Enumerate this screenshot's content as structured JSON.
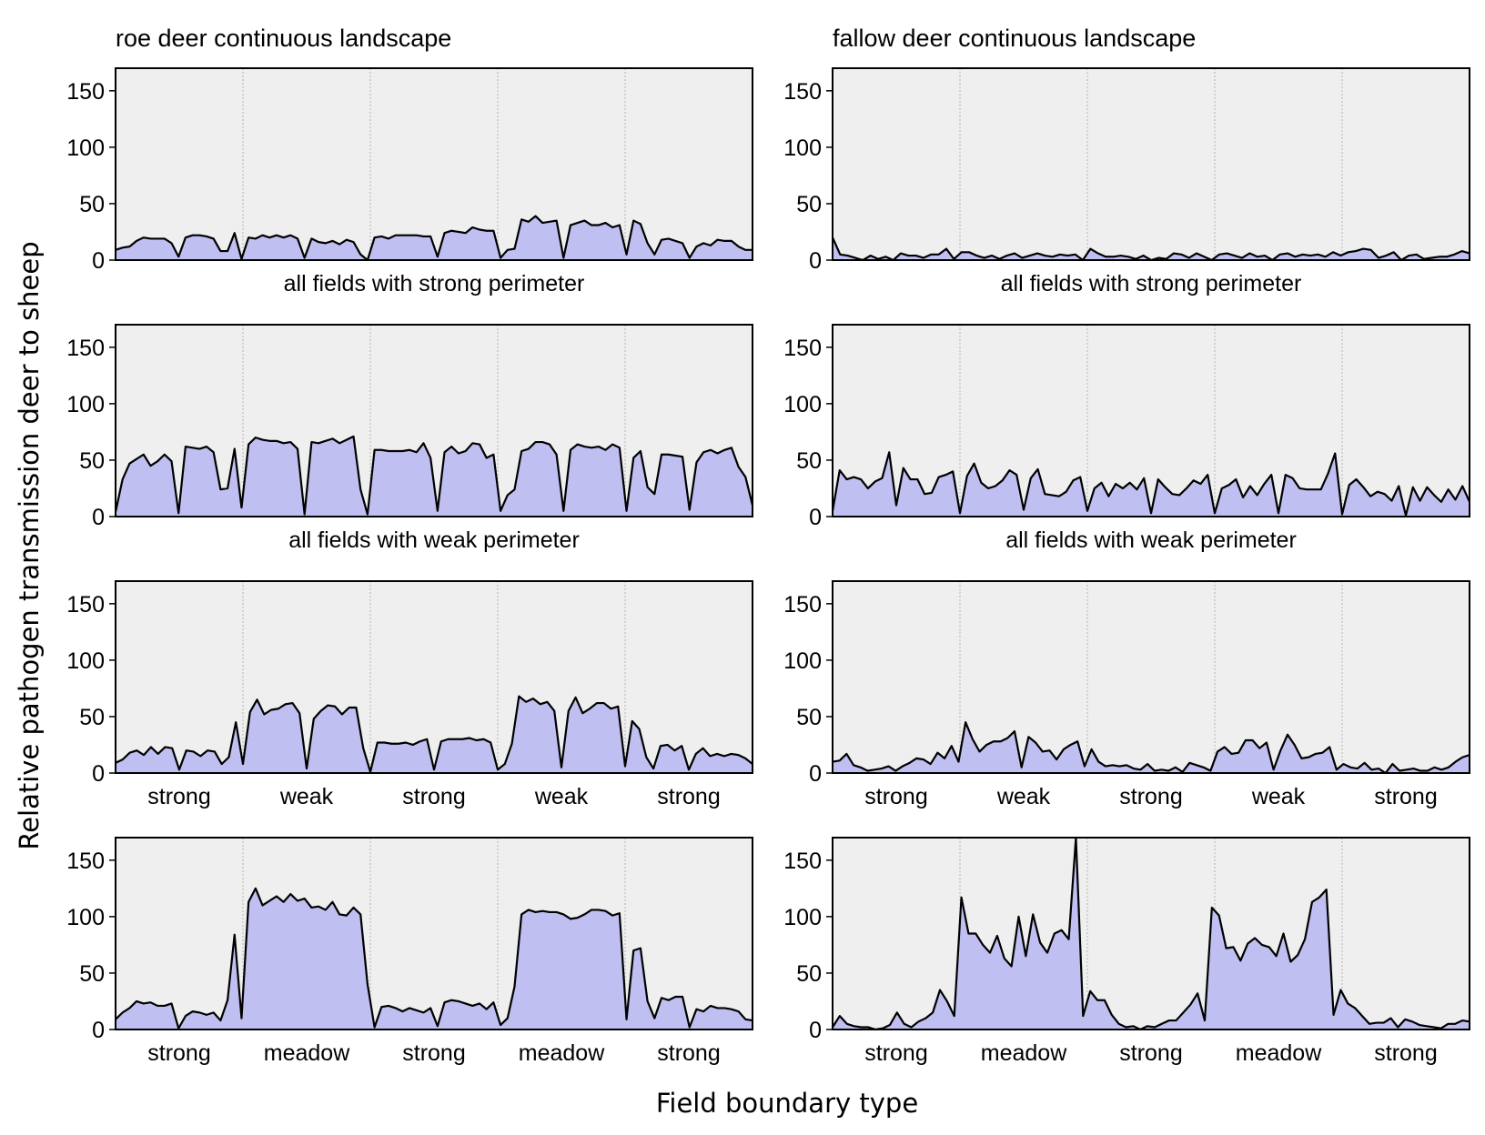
{
  "chart_data": {
    "type": "area",
    "ylabel": "Relative pathogen transmission deer to sheep",
    "xlabel": "Field boundary type",
    "ylim": [
      0,
      170
    ],
    "yticks": [
      0,
      50,
      100,
      150
    ],
    "columns": [
      "roe deer continuous landscape",
      "fallow deer continuous landscape"
    ],
    "panels": [
      {
        "col": 0,
        "row": 0,
        "title": "roe deer continuous landscape",
        "caption": "all fields with strong perimeter",
        "categories": [],
        "values": [
          9,
          11,
          12,
          17,
          20,
          19,
          19,
          19,
          15,
          3,
          20,
          22,
          22,
          21,
          19,
          8,
          8,
          24,
          1,
          20,
          19,
          22,
          20,
          22,
          20,
          22,
          19,
          2,
          19,
          16,
          15,
          17,
          14,
          18,
          16,
          5,
          0,
          20,
          21,
          19,
          22,
          22,
          22,
          22,
          21,
          21,
          3,
          24,
          26,
          25,
          24,
          29,
          27,
          26,
          26,
          2,
          9,
          10,
          36,
          34,
          39,
          33,
          34,
          35,
          2,
          31,
          33,
          35,
          31,
          31,
          33,
          29,
          31,
          5,
          35,
          32,
          15,
          5,
          18,
          19,
          17,
          15,
          2,
          12,
          15,
          13,
          18,
          17,
          17,
          12,
          9,
          9
        ]
      },
      {
        "col": 1,
        "row": 0,
        "title": "fallow deer continuous landscape",
        "caption": "all fields with strong perimeter",
        "categories": [],
        "values": [
          20,
          5,
          4,
          2,
          0,
          4,
          1,
          3,
          0,
          6,
          4,
          4,
          2,
          5,
          5,
          10,
          1,
          7,
          7,
          4,
          2,
          4,
          1,
          4,
          6,
          2,
          4,
          6,
          4,
          3,
          5,
          4,
          5,
          0,
          10,
          6,
          3,
          3,
          4,
          3,
          1,
          4,
          0,
          2,
          1,
          6,
          5,
          2,
          6,
          3,
          0,
          5,
          6,
          4,
          2,
          6,
          3,
          4,
          0,
          5,
          6,
          3,
          5,
          4,
          5,
          3,
          7,
          4,
          7,
          8,
          10,
          9,
          2,
          4,
          7,
          0,
          4,
          5,
          1,
          2,
          3,
          3,
          5,
          8,
          6
        ]
      },
      {
        "col": 0,
        "row": 1,
        "title": "",
        "caption": "all fields with weak perimeter",
        "categories": [],
        "values": [
          4,
          33,
          47,
          51,
          55,
          45,
          49,
          55,
          49,
          3,
          62,
          61,
          60,
          62,
          57,
          24,
          25,
          60,
          8,
          64,
          70,
          68,
          67,
          67,
          65,
          66,
          60,
          2,
          66,
          65,
          67,
          69,
          65,
          68,
          71,
          24,
          2,
          59,
          59,
          58,
          58,
          58,
          59,
          57,
          65,
          52,
          5,
          57,
          62,
          56,
          58,
          65,
          64,
          52,
          55,
          5,
          19,
          24,
          58,
          60,
          66,
          66,
          64,
          55,
          5,
          59,
          64,
          62,
          61,
          62,
          59,
          64,
          61,
          5,
          52,
          58,
          26,
          20,
          55,
          55,
          54,
          53,
          6,
          48,
          57,
          59,
          56,
          59,
          61,
          44,
          35,
          10
        ]
      },
      {
        "col": 1,
        "row": 1,
        "title": "",
        "caption": "all fields with weak perimeter",
        "categories": [],
        "values": [
          5,
          41,
          33,
          35,
          33,
          25,
          31,
          34,
          57,
          10,
          43,
          33,
          33,
          20,
          21,
          35,
          37,
          40,
          3,
          36,
          47,
          30,
          25,
          27,
          32,
          41,
          37,
          6,
          34,
          42,
          20,
          19,
          18,
          22,
          32,
          35,
          5,
          25,
          30,
          18,
          29,
          25,
          30,
          24,
          34,
          3,
          33,
          26,
          20,
          19,
          25,
          32,
          29,
          37,
          3,
          25,
          28,
          33,
          17,
          27,
          19,
          29,
          37,
          3,
          37,
          34,
          25,
          24,
          24,
          24,
          38,
          56,
          2,
          28,
          33,
          26,
          18,
          22,
          20,
          14,
          27,
          1,
          26,
          14,
          26,
          19,
          13,
          24,
          15,
          27,
          13
        ]
      },
      {
        "col": 0,
        "row": 2,
        "title": "",
        "caption": "",
        "categories": [
          "strong",
          "weak",
          "strong",
          "weak",
          "strong"
        ],
        "values": [
          9,
          12,
          18,
          20,
          16,
          23,
          17,
          23,
          22,
          3,
          20,
          19,
          15,
          20,
          19,
          8,
          14,
          45,
          8,
          54,
          65,
          52,
          56,
          57,
          61,
          62,
          53,
          4,
          48,
          55,
          60,
          59,
          52,
          58,
          58,
          22,
          1,
          27,
          27,
          26,
          26,
          27,
          25,
          28,
          30,
          3,
          28,
          30,
          30,
          30,
          31,
          29,
          30,
          27,
          3,
          8,
          26,
          68,
          63,
          66,
          61,
          63,
          55,
          5,
          55,
          67,
          53,
          57,
          62,
          62,
          57,
          59,
          6,
          46,
          39,
          14,
          4,
          24,
          25,
          20,
          24,
          3,
          17,
          22,
          15,
          17,
          15,
          17,
          16,
          13,
          8
        ]
      },
      {
        "col": 1,
        "row": 2,
        "title": "",
        "caption": "",
        "categories": [
          "strong",
          "weak",
          "strong",
          "weak",
          "strong"
        ],
        "values": [
          10,
          11,
          17,
          7,
          5,
          2,
          3,
          4,
          6,
          2,
          6,
          9,
          13,
          12,
          8,
          18,
          13,
          24,
          10,
          45,
          30,
          19,
          25,
          28,
          28,
          31,
          37,
          5,
          32,
          27,
          19,
          20,
          12,
          21,
          25,
          28,
          6,
          21,
          10,
          6,
          7,
          6,
          7,
          4,
          3,
          8,
          2,
          3,
          2,
          5,
          1,
          9,
          7,
          5,
          2,
          19,
          23,
          17,
          18,
          29,
          29,
          22,
          27,
          3,
          20,
          34,
          25,
          13,
          14,
          17,
          18,
          23,
          3,
          8,
          5,
          4,
          9,
          3,
          4,
          0,
          8,
          2,
          3,
          4,
          2,
          2,
          5,
          3,
          5,
          10,
          14,
          16
        ]
      },
      {
        "col": 0,
        "row": 3,
        "title": "",
        "caption": "",
        "categories": [
          "strong",
          "meadow",
          "strong",
          "meadow",
          "strong"
        ],
        "values": [
          9,
          15,
          19,
          25,
          23,
          24,
          21,
          21,
          23,
          1,
          12,
          16,
          15,
          13,
          15,
          8,
          26,
          84,
          10,
          113,
          125,
          110,
          114,
          118,
          113,
          120,
          114,
          116,
          108,
          109,
          106,
          113,
          102,
          101,
          108,
          102,
          40,
          2,
          20,
          21,
          19,
          16,
          19,
          17,
          15,
          19,
          3,
          24,
          26,
          25,
          23,
          21,
          23,
          18,
          24,
          4,
          10,
          38,
          102,
          106,
          104,
          105,
          104,
          104,
          102,
          98,
          99,
          102,
          106,
          106,
          105,
          101,
          103,
          9,
          70,
          72,
          25,
          10,
          28,
          26,
          29,
          29,
          2,
          18,
          16,
          21,
          19,
          19,
          18,
          16,
          9,
          8
        ]
      },
      {
        "col": 1,
        "row": 3,
        "title": "",
        "caption": "",
        "categories": [
          "strong",
          "meadow",
          "strong",
          "meadow",
          "strong"
        ],
        "values": [
          2,
          12,
          5,
          3,
          2,
          2,
          0,
          1,
          4,
          15,
          5,
          2,
          7,
          10,
          15,
          35,
          25,
          12,
          117,
          85,
          85,
          75,
          68,
          83,
          63,
          56,
          100,
          65,
          102,
          77,
          68,
          85,
          88,
          80,
          170,
          12,
          34,
          26,
          26,
          13,
          5,
          2,
          3,
          0,
          3,
          2,
          5,
          8,
          8,
          15,
          22,
          32,
          8,
          108,
          101,
          72,
          73,
          61,
          76,
          81,
          75,
          73,
          65,
          85,
          60,
          66,
          80,
          113,
          117,
          124,
          13,
          35,
          23,
          19,
          12,
          5,
          6,
          6,
          10,
          2,
          9,
          7,
          4,
          3,
          2,
          1,
          5,
          5,
          8,
          7
        ]
      }
    ]
  }
}
